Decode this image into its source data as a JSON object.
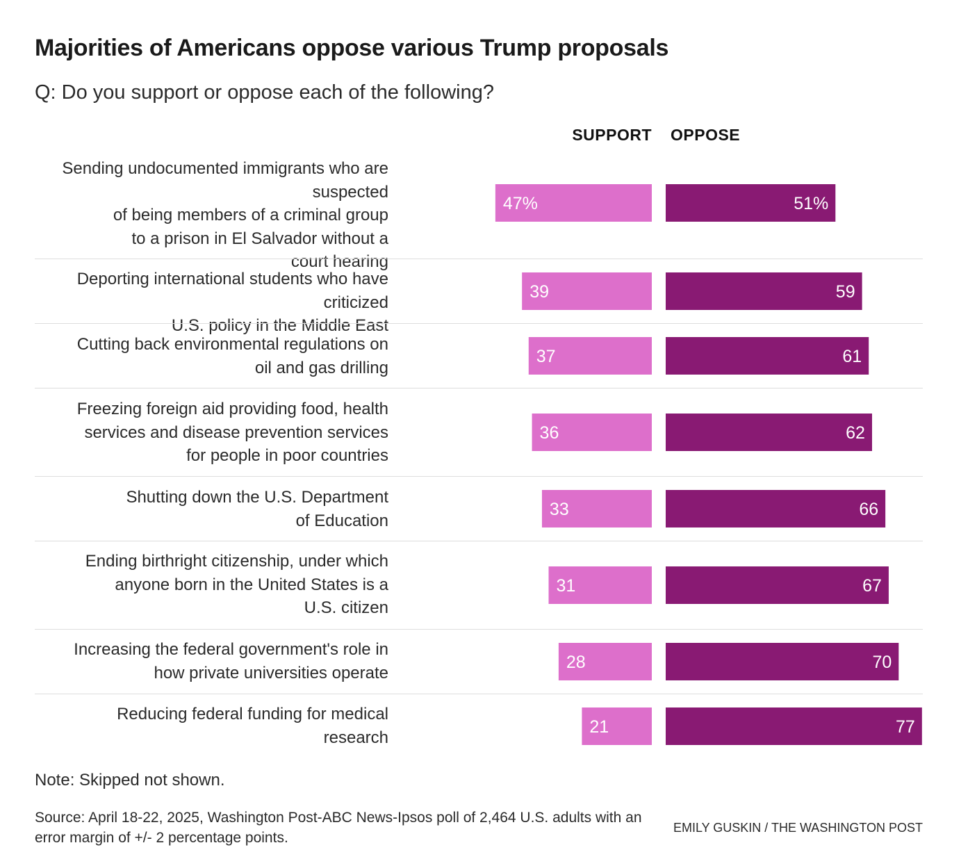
{
  "header": {
    "title": "Majorities of Americans oppose various Trump proposals",
    "subtitle": "Q: Do you support or oppose each of the following?"
  },
  "chart_data": {
    "type": "bar",
    "orientation": "diverging-horizontal",
    "title": "Majorities of Americans oppose various Trump proposals",
    "subtitle": "Q: Do you support or oppose each of the following?",
    "categories": [
      "Sending undocumented immigrants who are suspected of being members of a criminal group to a prison in El Salvador without a court hearing",
      "Deporting international students who have criticized U.S. policy in the Middle East",
      "Cutting back environmental regulations on oil and gas drilling",
      "Freezing foreign aid providing food, health services and disease prevention services for people in poor countries",
      "Shutting down the U.S. Department of Education",
      "Ending birthright citizenship, under which anyone born in the United States is a U.S. citizen",
      "Increasing the federal government's role in how private universities operate",
      "Reducing federal funding for medical research"
    ],
    "series": [
      {
        "name": "SUPPORT",
        "color": "#dd6fcb",
        "values": [
          47,
          39,
          37,
          36,
          33,
          31,
          28,
          21
        ],
        "labels": [
          "47%",
          "39",
          "37",
          "36",
          "33",
          "31",
          "28",
          "21"
        ]
      },
      {
        "name": "OPPOSE",
        "color": "#891a73",
        "values": [
          51,
          59,
          61,
          62,
          66,
          67,
          70,
          77
        ],
        "labels": [
          "51%",
          "59",
          "61",
          "62",
          "66",
          "67",
          "70",
          "77"
        ]
      }
    ],
    "xlim": [
      0,
      100
    ],
    "unit": "%",
    "xlabel": "",
    "ylabel": ""
  },
  "footer": {
    "note": "Note: Skipped not shown.",
    "source": "Source: April 18-22, 2025, Washington Post-ABC News-Ipsos poll of 2,464 U.S. adults with an error margin of +/- 2 percentage points.",
    "credit": "EMILY GUSKIN / THE WASHINGTON POST"
  },
  "colors": {
    "support": "#dd6fcb",
    "oppose": "#891a73",
    "divider": "#dddddd",
    "bar_text": "#ffffff"
  }
}
